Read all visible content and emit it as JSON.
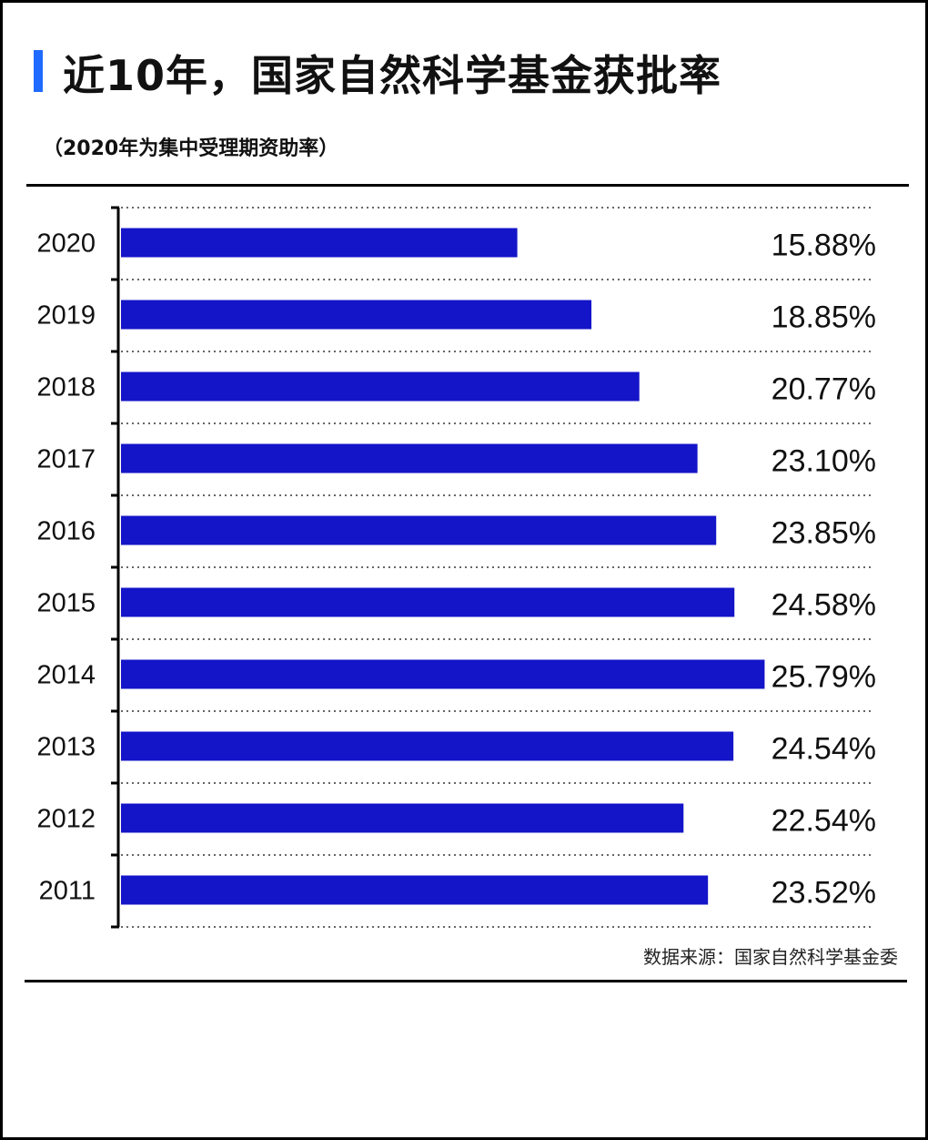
{
  "title": "近10年，国家自然科学基金获批率",
  "subtitle": "（2020年为集中受理期资助率）",
  "source": "数据来源：国家自然科学基金委",
  "colors": {
    "bar": "#1414c8",
    "title_accent": "#1f6bff",
    "axis": "#000000",
    "grid": "#666666"
  },
  "chart_data": {
    "type": "bar",
    "orientation": "horizontal",
    "categories": [
      "2020",
      "2019",
      "2018",
      "2017",
      "2016",
      "2015",
      "2014",
      "2013",
      "2012",
      "2011"
    ],
    "values": [
      15.88,
      18.85,
      20.77,
      23.1,
      23.85,
      24.58,
      25.79,
      24.54,
      22.54,
      23.52
    ],
    "value_labels": [
      "15.88%",
      "18.85%",
      "20.77%",
      "23.10%",
      "23.85%",
      "24.58%",
      "25.79%",
      "24.54%",
      "22.54%",
      "23.52%"
    ],
    "unit": "%",
    "grid": true,
    "grid_style": "dotted",
    "legend": "none"
  }
}
